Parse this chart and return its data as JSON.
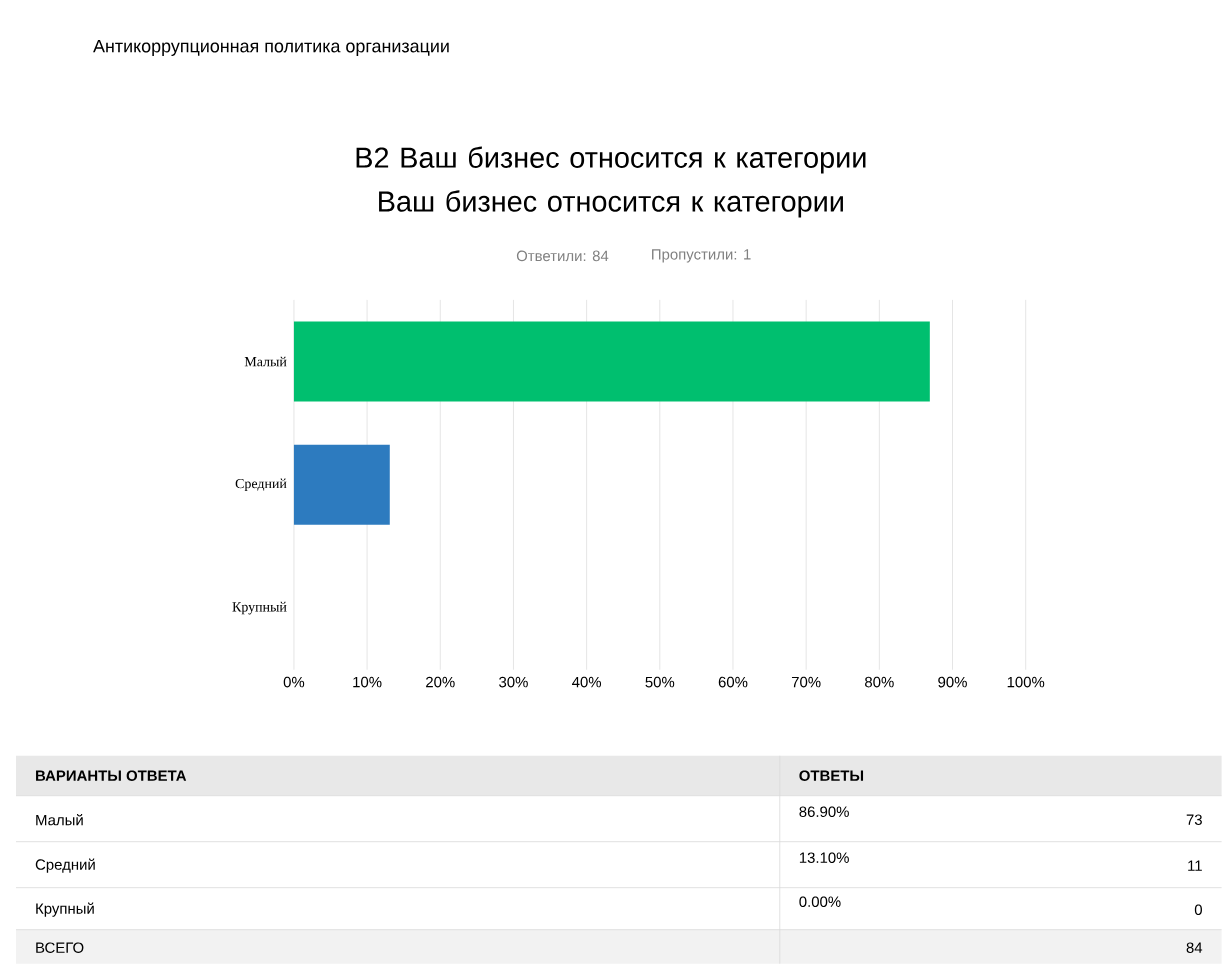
{
  "chart_data": {
    "type": "bar",
    "orientation": "horizontal",
    "title": "B2 Ваш бизнес относится к категории Ваш бизнес относится к категории",
    "subtitle": "Ответили: 84",
    "categories": [
      "Малый",
      "Средний",
      "Крупный"
    ],
    "values": [
      86.9,
      13.1,
      0.0
    ],
    "colors": [
      "#00bf6f",
      "#2d7bbf",
      "#f9be00"
    ],
    "xlim": [
      0,
      100
    ],
    "xticks": [
      {
        "value": 0,
        "label": "0%"
      },
      {
        "value": 10,
        "label": "10%"
      },
      {
        "value": 20,
        "label": "20%"
      },
      {
        "value": 30,
        "label": "30%"
      },
      {
        "value": 40,
        "label": "40%"
      },
      {
        "value": 50,
        "label": "50%"
      },
      {
        "value": 60,
        "label": "60%"
      },
      {
        "value": 70,
        "label": "70%"
      },
      {
        "value": 80,
        "label": "80%"
      },
      {
        "value": 90,
        "label": "90%"
      },
      {
        "value": 100,
        "label": "100%"
      }
    ],
    "grid": "x",
    "annotations": [
      "Антикоррупционная политика организации",
      "Пропустили: 1",
      "ВАРИАНТЫ ОТВЕТА",
      "ОТВЕТЫ",
      "73",
      "11",
      "0",
      "ВСЕГО",
      "84",
      "86.90%",
      "13.10%",
      "0.00%"
    ]
  }
}
